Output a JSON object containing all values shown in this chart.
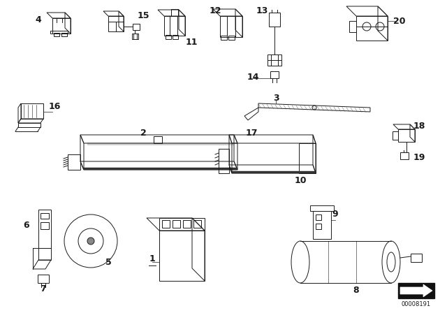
{
  "bg_color": "#ffffff",
  "line_color": "#1a1a1a",
  "fig_width": 6.4,
  "fig_height": 4.48,
  "dpi": 100,
  "watermark": "00008191",
  "lw": 0.7,
  "fontsize_label": 9
}
